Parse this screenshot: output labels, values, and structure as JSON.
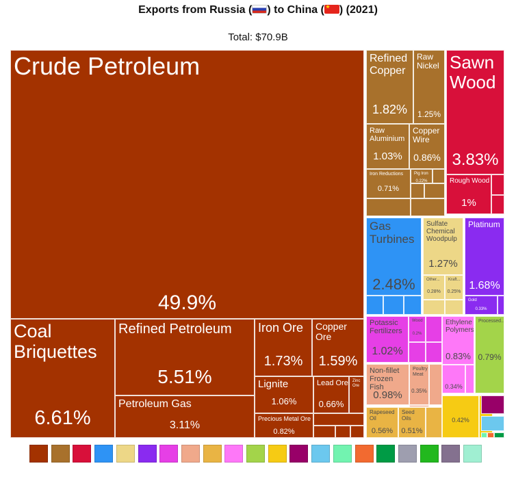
{
  "chart_data": {
    "type": "treemap",
    "title_parts": [
      "Exports from Russia (",
      ") to China (",
      ") (2021)"
    ],
    "total": "Total: $70.9B",
    "category_colors": [
      "#A33200",
      "#A8712C",
      "#D8103A",
      "#2E93F5",
      "#EDD787",
      "#8A2BF0",
      "#E63FE6",
      "#F0A98B",
      "#E9B444",
      "#FE78F8",
      "#A3D44A",
      "#F6CB14",
      "#980068",
      "#6CC8EE",
      "#72F3B0",
      "#F26A30",
      "#009B45",
      "#9E9EAF",
      "#22B81E",
      "#84718F",
      "#A0EFD2"
    ],
    "tiles": [
      {
        "label": "Crude Petroleum",
        "value": "49.9%",
        "cat": 0
      },
      {
        "label": "Coal Briquettes",
        "value": "6.61%",
        "cat": 0
      },
      {
        "label": "Refined Petroleum",
        "value": "5.51%",
        "cat": 0
      },
      {
        "label": "Petroleum Gas",
        "value": "3.11%",
        "cat": 0
      },
      {
        "label": "Iron Ore",
        "value": "1.73%",
        "cat": 0
      },
      {
        "label": "Copper Ore",
        "value": "1.59%",
        "cat": 0
      },
      {
        "label": "Lignite",
        "value": "1.06%",
        "cat": 0
      },
      {
        "label": "Lead Ore",
        "value": "0.66%",
        "cat": 0
      },
      {
        "label": "Zinc Ore",
        "value": "",
        "cat": 0
      },
      {
        "label": "Precious Metal Ore",
        "value": "0.82%",
        "cat": 0
      },
      {
        "label": "Refined Copper",
        "value": "1.82%",
        "cat": 1
      },
      {
        "label": "Raw Nickel",
        "value": "1.25%",
        "cat": 1
      },
      {
        "label": "Raw Aluminium",
        "value": "1.03%",
        "cat": 1
      },
      {
        "label": "Copper Wire",
        "value": "0.86%",
        "cat": 1
      },
      {
        "label": "Iron Reductions",
        "value": "0.71%",
        "cat": 1
      },
      {
        "label": "Pig Iron",
        "value": "0.22%",
        "cat": 1
      },
      {
        "label": "Sawn Wood",
        "value": "3.83%",
        "cat": 2
      },
      {
        "label": "Rough Wood",
        "value": "1%",
        "cat": 2
      },
      {
        "label": "Gas Turbines",
        "value": "2.48%",
        "cat": 3
      },
      {
        "label": "Sulfate Chemical Woodpulp",
        "value": "1.27%",
        "cat": 4
      },
      {
        "label": "Other...",
        "value": "0.28%",
        "cat": 4
      },
      {
        "label": "Kraft...",
        "value": "0.25%",
        "cat": 4
      },
      {
        "label": "Platinum",
        "value": "1.68%",
        "cat": 5
      },
      {
        "label": "Gold",
        "value": "0.33%",
        "cat": 5
      },
      {
        "label": "Potassic Fertilizers",
        "value": "1.02%",
        "cat": 6
      },
      {
        "label": "Wood",
        "value": "0.2%",
        "cat": 6
      },
      {
        "label": "Non-fillet Frozen Fish",
        "value": "0.98%",
        "cat": 7
      },
      {
        "label": "Poultry Meat",
        "value": "0.35%",
        "cat": 7
      },
      {
        "label": "Rapeseed Oil",
        "value": "0.56%",
        "cat": 8
      },
      {
        "label": "Seed Oils",
        "value": "0.51%",
        "cat": 8
      },
      {
        "label": "Ethylene Polymers",
        "value": "0.83%",
        "cat": 9
      },
      {
        "label": "",
        "value": "0.34%",
        "cat": 9
      },
      {
        "label": "Processed...",
        "value": "0.79%",
        "cat": 10
      },
      {
        "label": "",
        "value": "0.42%",
        "cat": 11
      }
    ]
  }
}
